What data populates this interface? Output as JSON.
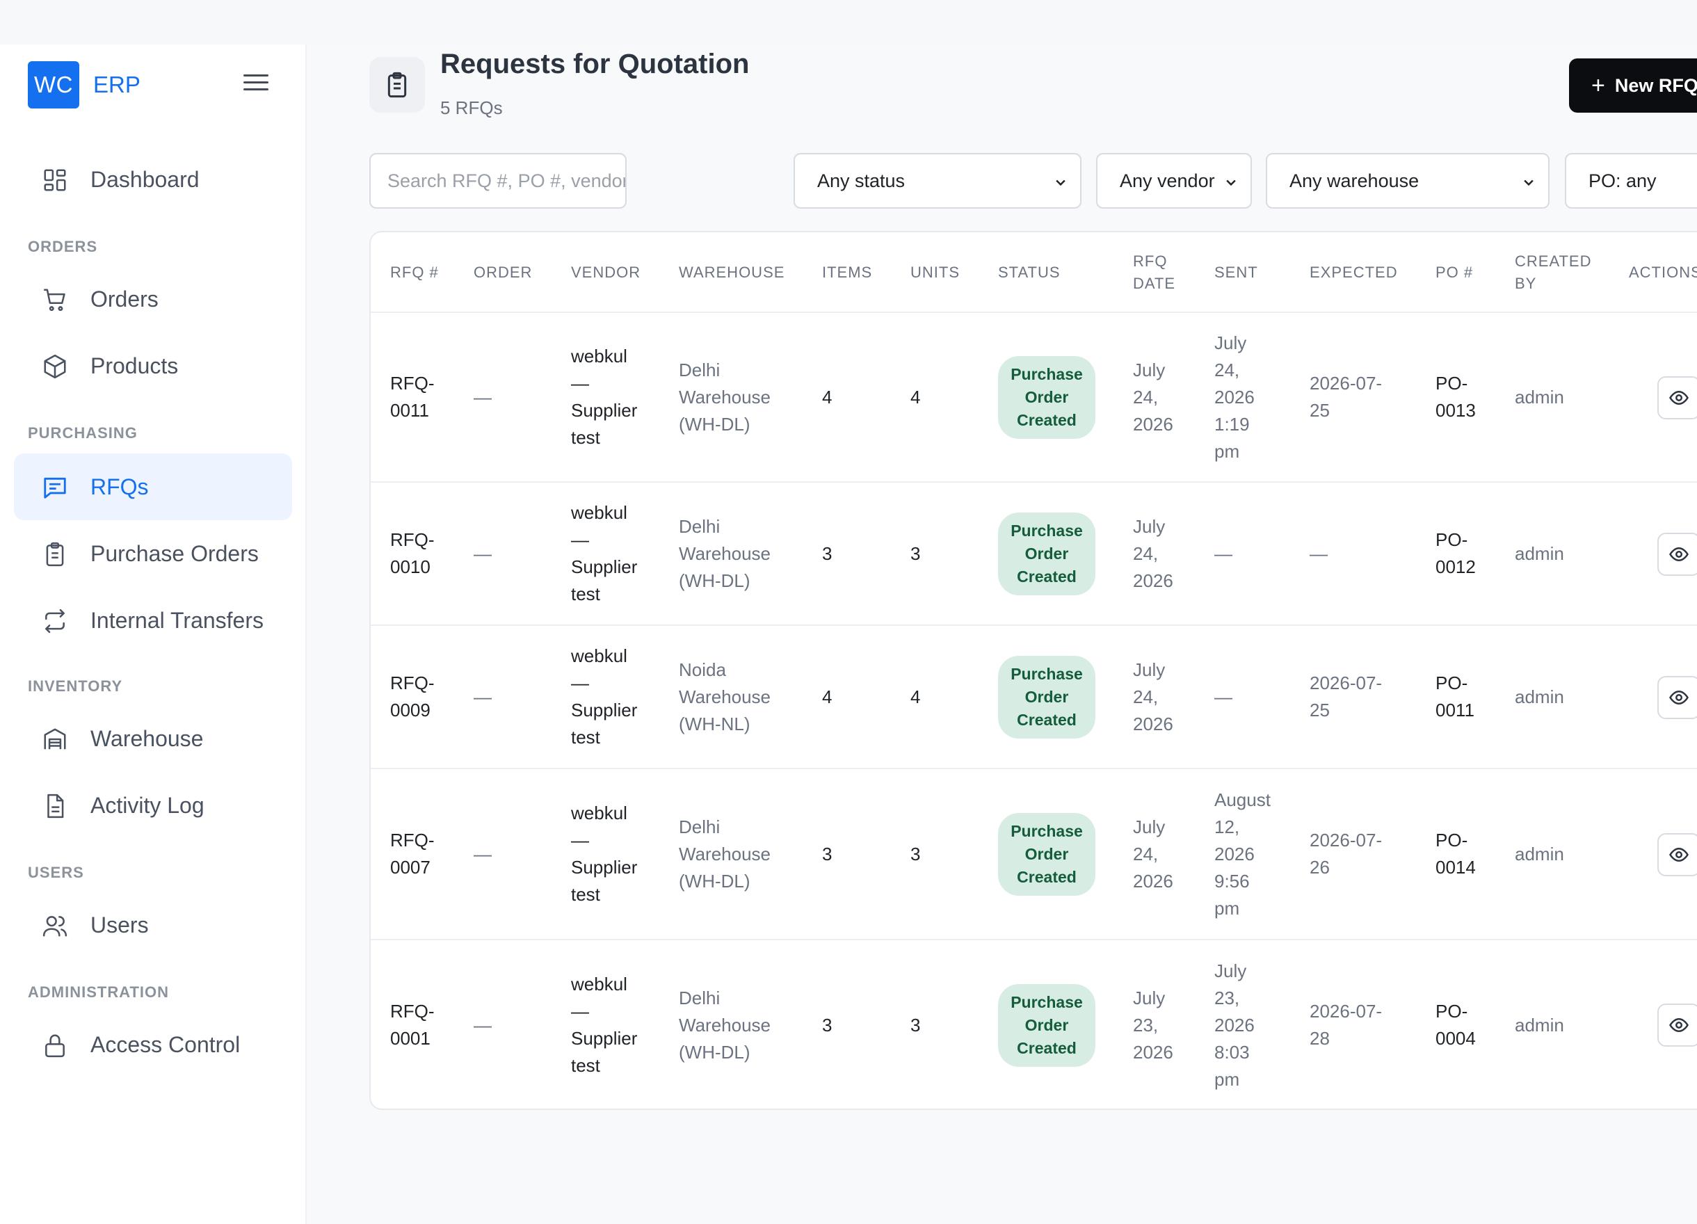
{
  "brand": {
    "logo": "WC",
    "name": "ERP"
  },
  "sidebar": {
    "items": [
      {
        "label": "Dashboard",
        "icon": "dashboard-icon"
      },
      {
        "section": "ORDERS"
      },
      {
        "label": "Orders",
        "icon": "cart-icon"
      },
      {
        "label": "Products",
        "icon": "box-icon"
      },
      {
        "section": "PURCHASING"
      },
      {
        "label": "RFQs",
        "icon": "message-icon",
        "active": true
      },
      {
        "label": "Purchase Orders",
        "icon": "clipboard-icon"
      },
      {
        "label": "Internal Transfers",
        "icon": "transfer-icon"
      },
      {
        "section": "INVENTORY"
      },
      {
        "label": "Warehouse",
        "icon": "warehouse-icon"
      },
      {
        "label": "Activity Log",
        "icon": "file-icon"
      },
      {
        "section": "USERS"
      },
      {
        "label": "Users",
        "icon": "users-icon"
      },
      {
        "section": "ADMINISTRATION"
      },
      {
        "label": "Access Control",
        "icon": "lock-icon"
      }
    ]
  },
  "header": {
    "title": "Requests for Quotation",
    "subtitle": "5 RFQs",
    "new_button": "New RFQ"
  },
  "filters": {
    "search_placeholder": "Search RFQ #, PO #, vendor, product, SKU or",
    "status": "Any status",
    "vendor": "Any vendor",
    "warehouse": "Any warehouse",
    "po": "PO: any"
  },
  "table": {
    "columns": [
      "RFQ #",
      "ORDER",
      "VENDOR",
      "WAREHOUSE",
      "ITEMS",
      "UNITS",
      "STATUS",
      "RFQ DATE",
      "SENT",
      "EXPECTED",
      "PO #",
      "CREATED BY",
      "ACTIONS"
    ],
    "rows": [
      {
        "rfq": "RFQ-0011",
        "order": "—",
        "vendor": "webkul — Supplier test",
        "warehouse": "Delhi Warehouse (WH-DL)",
        "items": "4",
        "units": "4",
        "status": "Purchase Order Created",
        "rfq_date": "July 24, 2026",
        "sent": "July 24, 2026 1:19 pm",
        "expected": "2026-07-25",
        "po": "PO-0013",
        "created_by": "admin"
      },
      {
        "rfq": "RFQ-0010",
        "order": "—",
        "vendor": "webkul — Supplier test",
        "warehouse": "Delhi Warehouse (WH-DL)",
        "items": "3",
        "units": "3",
        "status": "Purchase Order Created",
        "rfq_date": "July 24, 2026",
        "sent": "—",
        "expected": "—",
        "po": "PO-0012",
        "created_by": "admin"
      },
      {
        "rfq": "RFQ-0009",
        "order": "—",
        "vendor": "webkul — Supplier test",
        "warehouse": "Noida Warehouse (WH-NL)",
        "items": "4",
        "units": "4",
        "status": "Purchase Order Created",
        "rfq_date": "July 24, 2026",
        "sent": "—",
        "expected": "2026-07-25",
        "po": "PO-0011",
        "created_by": "admin"
      },
      {
        "rfq": "RFQ-0007",
        "order": "—",
        "vendor": "webkul — Supplier test",
        "warehouse": "Delhi Warehouse (WH-DL)",
        "items": "3",
        "units": "3",
        "status": "Purchase Order Created",
        "rfq_date": "July 24, 2026",
        "sent": "August 12, 2026 9:56 pm",
        "expected": "2026-07-26",
        "po": "PO-0014",
        "created_by": "admin"
      },
      {
        "rfq": "RFQ-0001",
        "order": "—",
        "vendor": "webkul — Supplier test",
        "warehouse": "Delhi Warehouse (WH-DL)",
        "items": "3",
        "units": "3",
        "status": "Purchase Order Created",
        "rfq_date": "July 23, 2026",
        "sent": "July 23, 2026 8:03 pm",
        "expected": "2026-07-28",
        "po": "PO-0004",
        "created_by": "admin"
      }
    ]
  },
  "colors": {
    "accent": "#1570ef",
    "active_bg": "#eef4ff",
    "badge_bg": "#d7ede3",
    "badge_text": "#145c3b"
  }
}
